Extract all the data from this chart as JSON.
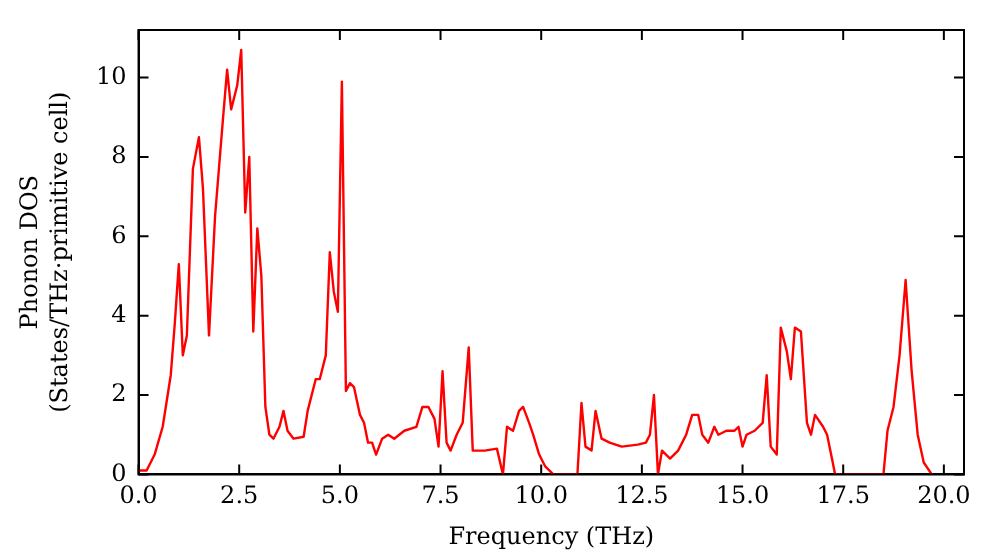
{
  "chart_data": {
    "type": "line",
    "xlabel": "Frequency (THz)",
    "ylabel": "Phonon DOS\n(States/THz·primitive cell)",
    "grid": false,
    "legend": false,
    "marker": "none",
    "line_style": "solid",
    "xlim": [
      0,
      20.5
    ],
    "ylim": [
      0,
      11.2
    ],
    "xticks": [
      {
        "value": 0,
        "label": "0.0"
      },
      {
        "value": 2.5,
        "label": "2.5"
      },
      {
        "value": 5,
        "label": "5.0"
      },
      {
        "value": 7.5,
        "label": "7.5"
      },
      {
        "value": 10,
        "label": "10.0"
      },
      {
        "value": 12.5,
        "label": "12.5"
      },
      {
        "value": 15,
        "label": "15.0"
      },
      {
        "value": 17.5,
        "label": "17.5"
      },
      {
        "value": 20,
        "label": "20.0"
      }
    ],
    "yticks": [
      0,
      2,
      4,
      6,
      8,
      10
    ],
    "series": [
      {
        "color": "#ff0000",
        "x": [
          0,
          0.2,
          0.4,
          0.6,
          0.8,
          0.9,
          1.0,
          1.1,
          1.2,
          1.35,
          1.5,
          1.6,
          1.75,
          1.9,
          2.1,
          2.2,
          2.3,
          2.45,
          2.55,
          2.65,
          2.75,
          2.85,
          2.95,
          3.05,
          3.15,
          3.25,
          3.35,
          3.5,
          3.6,
          3.7,
          3.85,
          4.1,
          4.2,
          4.4,
          4.5,
          4.65,
          4.75,
          4.85,
          4.95,
          5.05,
          5.15,
          5.25,
          5.35,
          5.5,
          5.6,
          5.7,
          5.8,
          5.9,
          6.05,
          6.2,
          6.35,
          6.6,
          6.9,
          7.05,
          7.2,
          7.35,
          7.45,
          7.55,
          7.65,
          7.75,
          7.9,
          8.05,
          8.2,
          8.3,
          8.6,
          8.9,
          9.05,
          9.15,
          9.3,
          9.45,
          9.55,
          9.7,
          9.8,
          9.95,
          10.1,
          10.3,
          10.9,
          11.0,
          11.1,
          11.25,
          11.35,
          11.5,
          11.7,
          12.0,
          12.4,
          12.6,
          12.7,
          12.8,
          12.9,
          13.0,
          13.2,
          13.4,
          13.6,
          13.75,
          13.9,
          14.0,
          14.15,
          14.3,
          14.4,
          14.6,
          14.8,
          14.9,
          15.0,
          15.1,
          15.3,
          15.5,
          15.6,
          15.7,
          15.85,
          15.95,
          16.1,
          16.2,
          16.3,
          16.45,
          16.6,
          16.7,
          16.8,
          17.0,
          17.1,
          17.2,
          17.3,
          18.5,
          18.6,
          18.75,
          18.9,
          19.05,
          19.2,
          19.35,
          19.5,
          19.7
        ],
        "values": [
          0.1,
          0.1,
          0.5,
          1.2,
          2.5,
          3.8,
          5.3,
          3.0,
          3.5,
          7.7,
          8.5,
          7.2,
          3.5,
          6.5,
          9.0,
          10.2,
          9.2,
          9.8,
          10.7,
          6.6,
          8.0,
          3.6,
          6.2,
          5.0,
          1.7,
          1.0,
          0.9,
          1.2,
          1.6,
          1.1,
          0.9,
          0.95,
          1.6,
          2.4,
          2.4,
          3.0,
          5.6,
          4.6,
          4.1,
          9.9,
          2.1,
          2.3,
          2.2,
          1.5,
          1.3,
          0.8,
          0.8,
          0.5,
          0.9,
          1.0,
          0.9,
          1.1,
          1.2,
          1.7,
          1.7,
          1.4,
          0.7,
          2.6,
          0.8,
          0.6,
          1.0,
          1.3,
          3.2,
          0.6,
          0.6,
          0.65,
          0.0,
          1.2,
          1.1,
          1.6,
          1.7,
          1.3,
          1.0,
          0.5,
          0.2,
          0.0,
          0.0,
          1.8,
          0.7,
          0.6,
          1.6,
          0.9,
          0.8,
          0.7,
          0.75,
          0.8,
          1.0,
          2.0,
          0.0,
          0.6,
          0.4,
          0.6,
          1.0,
          1.5,
          1.5,
          1.0,
          0.8,
          1.2,
          1.0,
          1.1,
          1.1,
          1.2,
          0.7,
          1.0,
          1.1,
          1.3,
          2.5,
          0.7,
          0.5,
          3.7,
          3.1,
          2.4,
          3.7,
          3.6,
          1.3,
          1.0,
          1.5,
          1.2,
          1.0,
          0.5,
          0.0,
          0.0,
          1.1,
          1.7,
          3.0,
          4.9,
          2.6,
          1.0,
          0.3,
          0.0
        ]
      }
    ]
  }
}
